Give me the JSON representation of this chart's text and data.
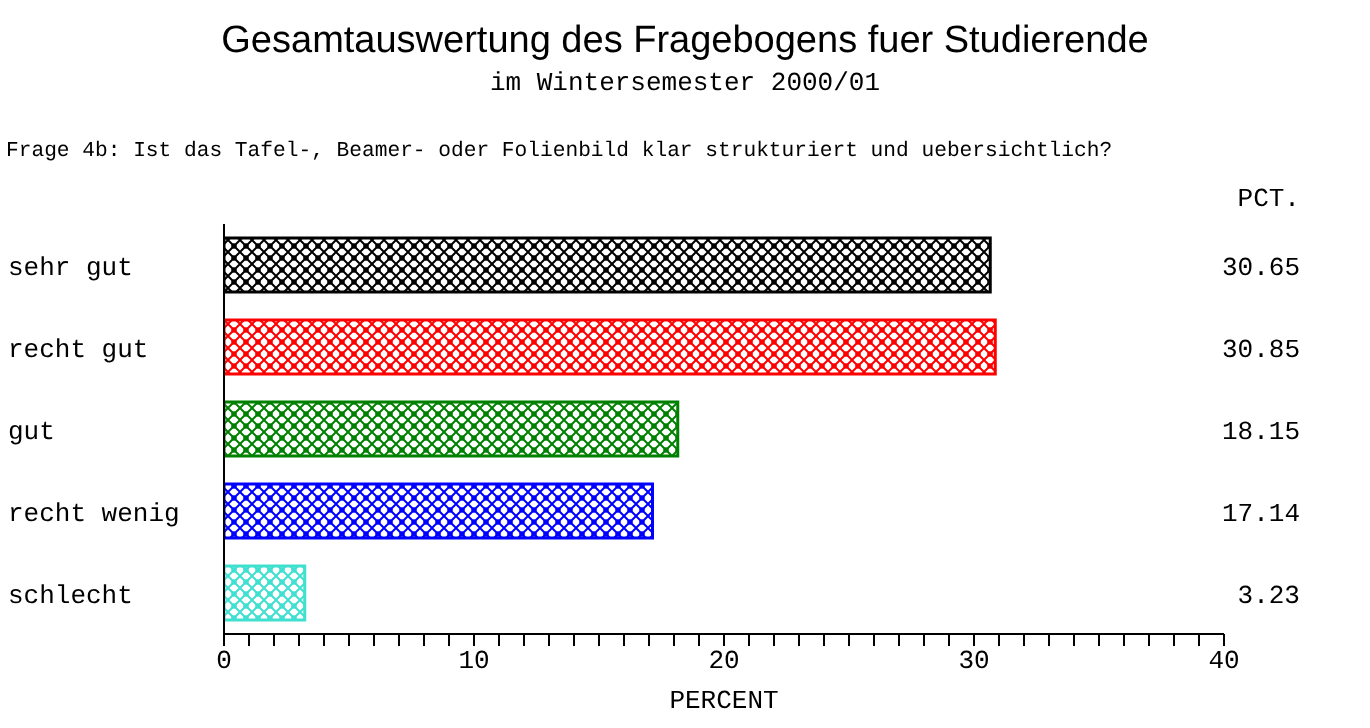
{
  "chart_data": {
    "type": "bar",
    "orientation": "horizontal",
    "title": "Gesamtauswertung des Fragebogens fuer Studierende",
    "subtitle": "im Wintersemester 2000/01",
    "annotations": [
      "Frage 4b: Ist das Tafel-, Beamer- oder Folienbild klar strukturiert und uebersichtlich?",
      "PCT."
    ],
    "categories": [
      "sehr gut",
      "recht gut",
      "gut",
      "recht wenig",
      "schlecht"
    ],
    "values": [
      30.65,
      30.85,
      18.15,
      17.14,
      3.23
    ],
    "colors": [
      "#000000",
      "#ff0000",
      "#008000",
      "#0000ff",
      "#40e0d0"
    ],
    "xlabel": "PERCENT",
    "xlim": [
      0,
      40
    ],
    "xticks": [
      0,
      {
        "value": 1,
        "label": null
      },
      {
        "value": 2,
        "label": null
      },
      {
        "value": 3,
        "label": null
      },
      {
        "value": 4,
        "label": null
      },
      {
        "value": 5,
        "label": null
      },
      {
        "value": 6,
        "label": null
      },
      {
        "value": 7,
        "label": null
      },
      {
        "value": 8,
        "label": null
      },
      {
        "value": 9,
        "label": null
      },
      10,
      {
        "value": 11,
        "label": null
      },
      {
        "value": 12,
        "label": null
      },
      {
        "value": 13,
        "label": null
      },
      {
        "value": 14,
        "label": null
      },
      {
        "value": 15,
        "label": null
      },
      {
        "value": 16,
        "label": null
      },
      {
        "value": 17,
        "label": null
      },
      {
        "value": 18,
        "label": null
      },
      {
        "value": 19,
        "label": null
      },
      20,
      {
        "value": 21,
        "label": null
      },
      {
        "value": 22,
        "label": null
      },
      {
        "value": 23,
        "label": null
      },
      {
        "value": 24,
        "label": null
      },
      {
        "value": 25,
        "label": null
      },
      {
        "value": 26,
        "label": null
      },
      {
        "value": 27,
        "label": null
      },
      {
        "value": 28,
        "label": null
      },
      {
        "value": 29,
        "label": null
      },
      30,
      {
        "value": 31,
        "label": null
      },
      {
        "value": 32,
        "label": null
      },
      {
        "value": 33,
        "label": null
      },
      {
        "value": 34,
        "label": null
      },
      {
        "value": 35,
        "label": null
      },
      {
        "value": 36,
        "label": null
      },
      {
        "value": 37,
        "label": null
      },
      {
        "value": 38,
        "label": null
      },
      {
        "value": 39,
        "label": null
      },
      40
    ],
    "data_labels": true
  }
}
